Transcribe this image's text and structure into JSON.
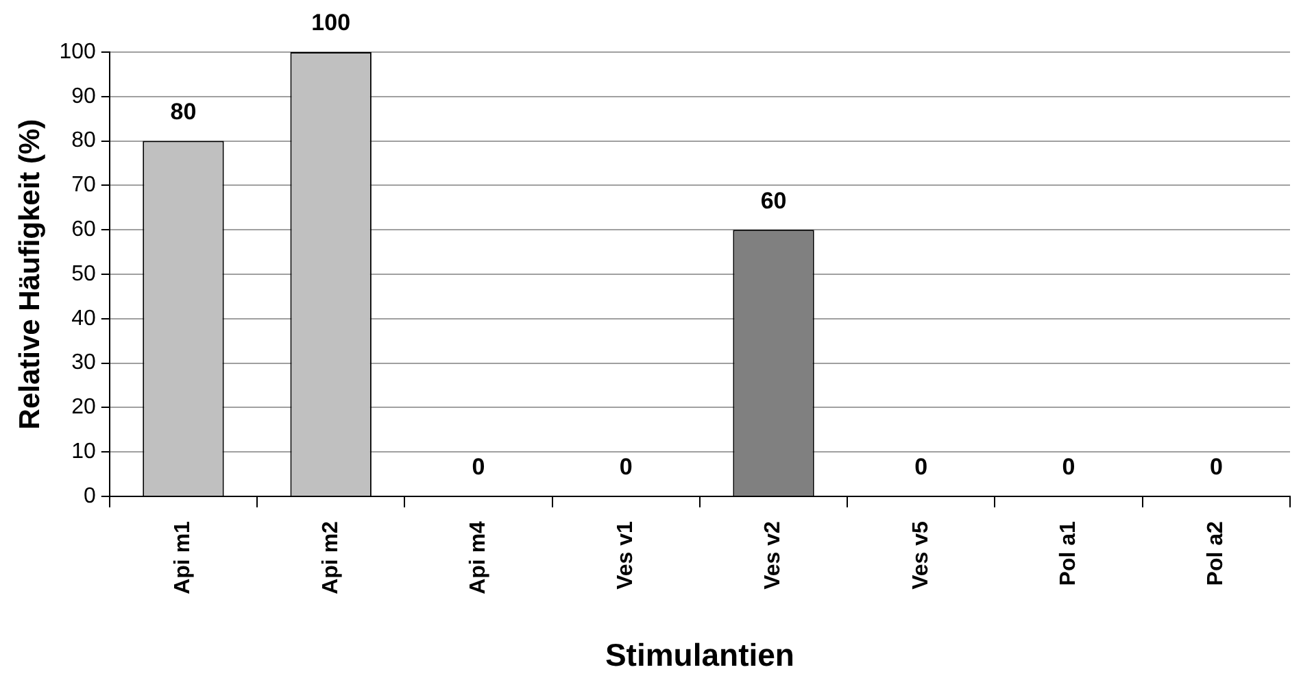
{
  "chart_data": {
    "type": "bar",
    "xlabel": "Stimulantien",
    "ylabel": "Relative Häufigkeit (%)",
    "categories": [
      "Api m1",
      "Api m2",
      "Api m4",
      "Ves v1",
      "Ves v2",
      "Ves v5",
      "Pol a1",
      "Pol a2"
    ],
    "values": [
      80,
      100,
      0,
      0,
      60,
      0,
      0,
      0
    ],
    "colors": [
      "#c0c0c0",
      "#c0c0c0",
      "#c0c0c0",
      "#c0c0c0",
      "#808080",
      "#c0c0c0",
      "#c0c0c0",
      "#c0c0c0"
    ],
    "ylim": [
      0,
      100
    ],
    "yticks": [
      0,
      10,
      20,
      30,
      40,
      50,
      60,
      70,
      80,
      90,
      100
    ],
    "grid": "y",
    "data_labels": true,
    "legend": false
  }
}
